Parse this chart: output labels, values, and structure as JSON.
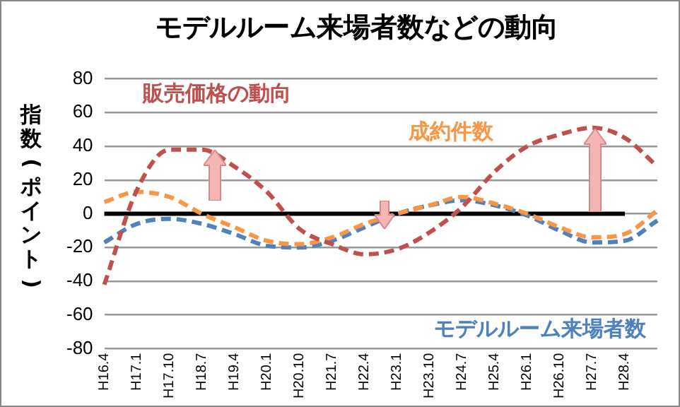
{
  "chart_data": {
    "type": "line",
    "title": "モデルルーム来場者数などの動向",
    "ylabel": "指数(ポイント)",
    "categories": [
      "H16.4",
      "H17.1",
      "H17.10",
      "H18.7",
      "H19.4",
      "H20.1",
      "H20.10",
      "H21.7",
      "H22.4",
      "H23.1",
      "H23.10",
      "H24.7",
      "H25.4",
      "H26.1",
      "H26.10",
      "H27.7",
      "H28.4",
      null
    ],
    "series": [
      {
        "name": "販売価格の動向",
        "color": "#c0504d",
        "values": [
          -42,
          14,
          38,
          38,
          28,
          13,
          -9,
          -18,
          -24,
          -21,
          -11,
          4,
          25,
          40,
          47,
          51,
          45,
          28
        ]
      },
      {
        "name": "成約件数",
        "color": "#f79646",
        "values": [
          7,
          13,
          10,
          0,
          -8,
          -16,
          -18,
          -14,
          -6,
          0,
          5,
          10,
          6,
          0,
          -8,
          -14,
          -12,
          2
        ]
      },
      {
        "name": "モデルルーム来場者数",
        "color": "#4f81bd",
        "values": [
          -17,
          -6,
          -3,
          -6,
          -12,
          -19,
          -20,
          -16,
          -8,
          0,
          5,
          8,
          5,
          -1,
          -10,
          -17,
          -16,
          -4
        ]
      }
    ],
    "ylim": [
      -80,
      80
    ],
    "yticks": [
      -80,
      -60,
      -40,
      -20,
      0,
      20,
      40,
      60,
      80
    ],
    "grid": "y",
    "legend": false,
    "marker": "none",
    "line_style": "dashed",
    "ref_lines": [
      {
        "axis": "y",
        "value": 0,
        "color": "#000000"
      }
    ]
  }
}
